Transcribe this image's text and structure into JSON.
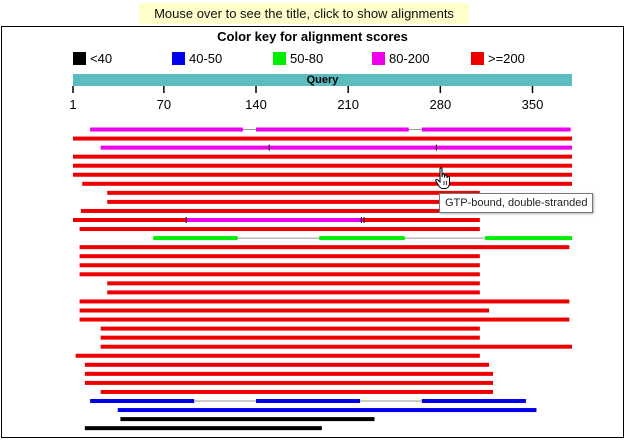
{
  "hint": "Mouse over to see the title, click to show alignments",
  "color_key": {
    "title": "Color key for alignment scores",
    "items": [
      {
        "label": "<40",
        "color": "#000000"
      },
      {
        "label": "40-50",
        "color": "#0000ee"
      },
      {
        "label": "50-80",
        "color": "#00ee00"
      },
      {
        "label": "80-200",
        "color": "#ee00ee"
      },
      {
        "label": ">=200",
        "color": "#ee0000"
      }
    ]
  },
  "query": {
    "label": "Query",
    "start": 1,
    "end": 380,
    "ticks": [
      1,
      70,
      140,
      210,
      280,
      350
    ]
  },
  "tooltip": "GTP-bound, double-stranded",
  "hits": [
    {
      "score": "80-200",
      "segments": [
        [
          14,
          130
        ],
        [
          140,
          256
        ],
        [
          266,
          379
        ]
      ]
    },
    {
      "score": ">=200",
      "segments": [
        [
          1,
          380
        ]
      ]
    },
    {
      "score": "80-200",
      "segments": [
        [
          22,
          380
        ]
      ],
      "marks": [
        150,
        277
      ]
    },
    {
      "score": ">=200",
      "segments": [
        [
          1,
          380
        ]
      ]
    },
    {
      "score": ">=200",
      "segments": [
        [
          1,
          380
        ]
      ]
    },
    {
      "score": ">=200",
      "segments": [
        [
          1,
          380
        ]
      ]
    },
    {
      "score": ">=200",
      "segments": [
        [
          8,
          380
        ]
      ]
    },
    {
      "score": ">=200",
      "segments": [
        [
          27,
          310
        ]
      ]
    },
    {
      "score": ">=200",
      "segments": [
        [
          27,
          310
        ]
      ]
    },
    {
      "score": ">=200",
      "segments": [
        [
          7,
          310
        ]
      ]
    },
    {
      "score": ">=200",
      "segments": [
        [
          1,
          87
        ],
        [
          87,
          221
        ],
        [
          221,
          310
        ]
      ],
      "colors": [
        ">=200",
        "80-200",
        ">=200"
      ],
      "marks": [
        87,
        220,
        222
      ]
    },
    {
      "score": ">=200",
      "segments": [
        [
          6,
          310
        ]
      ]
    },
    {
      "score": "50-80",
      "segments": [
        [
          62,
          126
        ],
        [
          188,
          253
        ],
        [
          314,
          380
        ]
      ]
    },
    {
      "score": ">=200",
      "segments": [
        [
          6,
          378
        ]
      ]
    },
    {
      "score": ">=200",
      "segments": [
        [
          6,
          310
        ]
      ]
    },
    {
      "score": ">=200",
      "segments": [
        [
          6,
          310
        ]
      ]
    },
    {
      "score": ">=200",
      "segments": [
        [
          6,
          310
        ]
      ]
    },
    {
      "score": ">=200",
      "segments": [
        [
          27,
          310
        ]
      ]
    },
    {
      "score": ">=200",
      "segments": [
        [
          27,
          310
        ]
      ]
    },
    {
      "score": ">=200",
      "segments": [
        [
          6,
          378
        ]
      ]
    },
    {
      "score": ">=200",
      "segments": [
        [
          6,
          317
        ]
      ]
    },
    {
      "score": ">=200",
      "segments": [
        [
          6,
          378
        ]
      ]
    },
    {
      "score": ">=200",
      "segments": [
        [
          22,
          310
        ]
      ]
    },
    {
      "score": ">=200",
      "segments": [
        [
          22,
          310
        ]
      ]
    },
    {
      "score": ">=200",
      "segments": [
        [
          22,
          380
        ]
      ]
    },
    {
      "score": ">=200",
      "segments": [
        [
          3,
          310
        ]
      ]
    },
    {
      "score": ">=200",
      "segments": [
        [
          10,
          317
        ]
      ]
    },
    {
      "score": ">=200",
      "segments": [
        [
          10,
          320
        ]
      ]
    },
    {
      "score": ">=200",
      "segments": [
        [
          10,
          320
        ]
      ]
    },
    {
      "score": ">=200",
      "segments": [
        [
          22,
          320
        ]
      ]
    },
    {
      "score": "40-50",
      "segments": [
        [
          14,
          93
        ],
        [
          140,
          219
        ],
        [
          266,
          345
        ]
      ]
    },
    {
      "score": "40-50",
      "segments": [
        [
          35,
          353
        ]
      ]
    },
    {
      "score": "<40",
      "segments": [
        [
          37,
          230
        ]
      ]
    },
    {
      "score": "<40",
      "segments": [
        [
          10,
          190
        ]
      ]
    }
  ]
}
